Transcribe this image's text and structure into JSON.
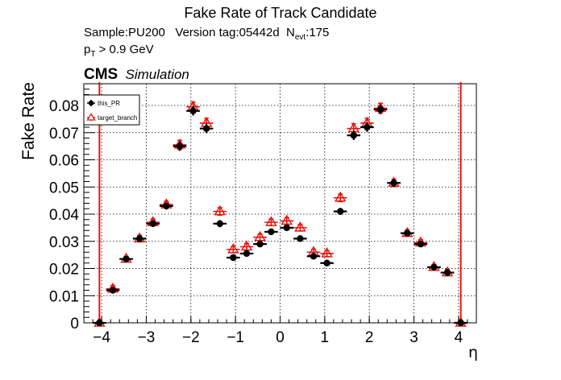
{
  "header": {
    "title": "Fake Rate of Track Candidate",
    "sample_prefix": "Sample:PU200   Version tag:05442d  N",
    "sample_sub": "evt",
    "sample_suffix": ":175",
    "pt_main": "p",
    "pt_sub": "T",
    "pt_cut": " > 0.9 GeV",
    "cms": "CMS",
    "simulation": "Simulation"
  },
  "colors": {
    "this_pr": "#000000",
    "target_branch": "#e8120a",
    "grid": "#000000"
  },
  "chart_data": {
    "type": "scatter",
    "xlabel": "η",
    "ylabel": "Fake Rate",
    "xlim": [
      -4.4,
      4.4
    ],
    "ylim": [
      0,
      0.088
    ],
    "grid": true,
    "legend_position": "top-left",
    "x_ticks": [
      -4,
      -3,
      -2,
      -1,
      0,
      1,
      2,
      3,
      4
    ],
    "x_tick_labels": [
      "−4",
      "−3",
      "−2",
      "−1",
      "0",
      "1",
      "2",
      "3",
      "4"
    ],
    "y_ticks": [
      0,
      0.01,
      0.02,
      0.03,
      0.04,
      0.05,
      0.06,
      0.07,
      0.08
    ],
    "y_tick_labels": [
      "0",
      "0.01",
      "0.02",
      "0.03",
      "0.04",
      "0.05",
      "0.06",
      "0.07",
      "0.08"
    ],
    "vertical_lines": [
      -4.05,
      4.05
    ],
    "x": [
      -4.05,
      -3.75,
      -3.45,
      -3.15,
      -2.85,
      -2.55,
      -2.25,
      -1.95,
      -1.65,
      -1.35,
      -1.05,
      -0.75,
      -0.45,
      -0.2,
      0.15,
      0.45,
      0.75,
      1.05,
      1.35,
      1.65,
      1.95,
      2.25,
      2.55,
      2.85,
      3.15,
      3.45,
      3.75,
      4.05
    ],
    "x_half_width": 0.15,
    "series": [
      {
        "name": "this_PR",
        "marker": "circle",
        "values": [
          0,
          0.012,
          0.0235,
          0.031,
          0.0365,
          0.043,
          0.065,
          0.078,
          0.0715,
          0.0365,
          0.024,
          0.0255,
          0.029,
          0.0335,
          0.035,
          0.031,
          0.0245,
          0.022,
          0.041,
          0.069,
          0.072,
          0.0785,
          0.0515,
          0.033,
          0.029,
          0.0205,
          0.0185,
          0
        ],
        "errors": [
          0,
          0.0012,
          0.001,
          0.0012,
          0.0012,
          0.0013,
          0.0017,
          0.0017,
          0.0017,
          0.0013,
          0.0011,
          0.0011,
          0.0011,
          0.0011,
          0.0011,
          0.0011,
          0.0011,
          0.0011,
          0.0013,
          0.0017,
          0.0017,
          0.0017,
          0.0014,
          0.0011,
          0.0011,
          0.001,
          0.0012,
          0
        ]
      },
      {
        "name": "target_branch",
        "marker": "triangle-open",
        "values": [
          0,
          0.0125,
          0.0235,
          0.031,
          0.037,
          0.0435,
          0.0655,
          0.0795,
          0.0735,
          0.041,
          0.027,
          0.028,
          0.0315,
          0.037,
          0.0375,
          0.035,
          0.026,
          0.0255,
          0.046,
          0.0715,
          0.0735,
          0.079,
          0.0515,
          0.033,
          0.0295,
          0.0205,
          0.0185,
          0
        ],
        "errors": [
          0,
          0.0012,
          0.001,
          0.0012,
          0.0012,
          0.0013,
          0.0017,
          0.0018,
          0.0018,
          0.0014,
          0.0012,
          0.0012,
          0.0012,
          0.0012,
          0.0012,
          0.0012,
          0.0011,
          0.0011,
          0.0014,
          0.0018,
          0.0018,
          0.0018,
          0.0014,
          0.0011,
          0.0011,
          0.001,
          0.0012,
          0
        ]
      }
    ]
  }
}
